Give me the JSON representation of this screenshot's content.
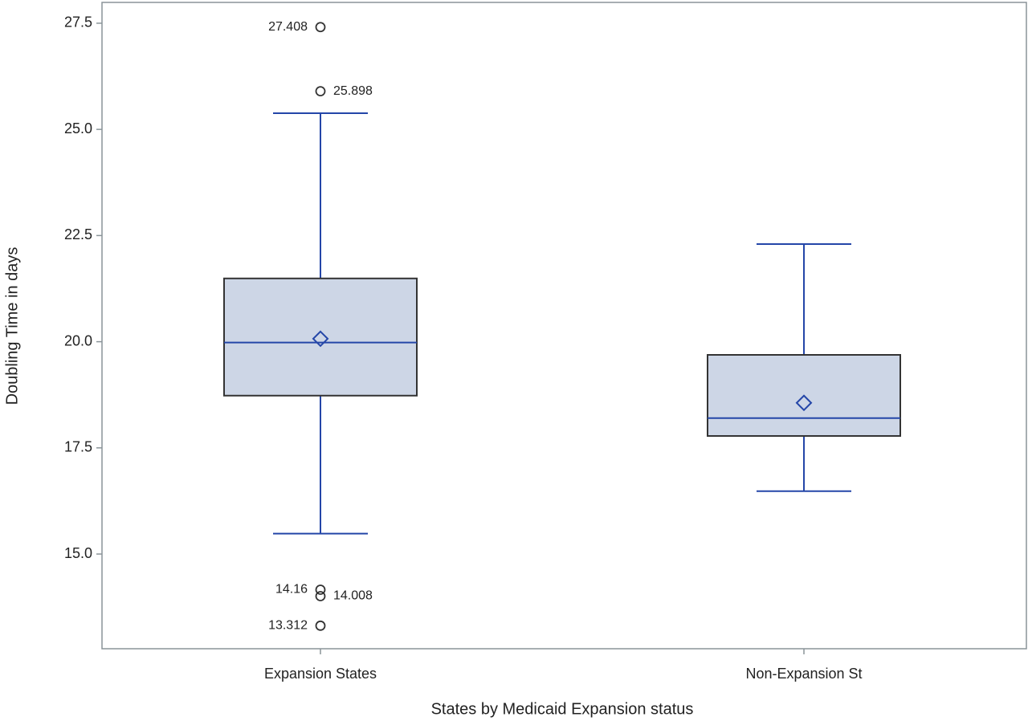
{
  "chart_data": {
    "type": "box",
    "x_label": "States by Medicaid Expansion status",
    "y_label": "Doubling Time in days",
    "categories": [
      "Expansion States",
      "Non-Expansion St"
    ],
    "boxes": [
      {
        "whisker_low": 15.48,
        "q1": 18.73,
        "median": 19.98,
        "q3": 21.49,
        "whisker_high": 25.38,
        "mean": 20.07,
        "outliers": [
          27.408,
          25.898,
          14.16,
          14.008,
          13.312
        ]
      },
      {
        "whisker_low": 16.48,
        "q1": 17.78,
        "median": 18.2,
        "q3": 19.69,
        "whisker_high": 22.3,
        "mean": 18.56,
        "outliers": []
      }
    ],
    "box_color": "#cdd6e6",
    "line_color": "#2446a8",
    "ylim": [
      12.77,
      27.99
    ],
    "yticks": [
      {
        "value": 15,
        "label": "15.0"
      },
      17.5,
      {
        "value": 20,
        "label": "20.0"
      },
      22.5,
      {
        "value": 25,
        "label": "25.0"
      },
      27.5
    ]
  }
}
